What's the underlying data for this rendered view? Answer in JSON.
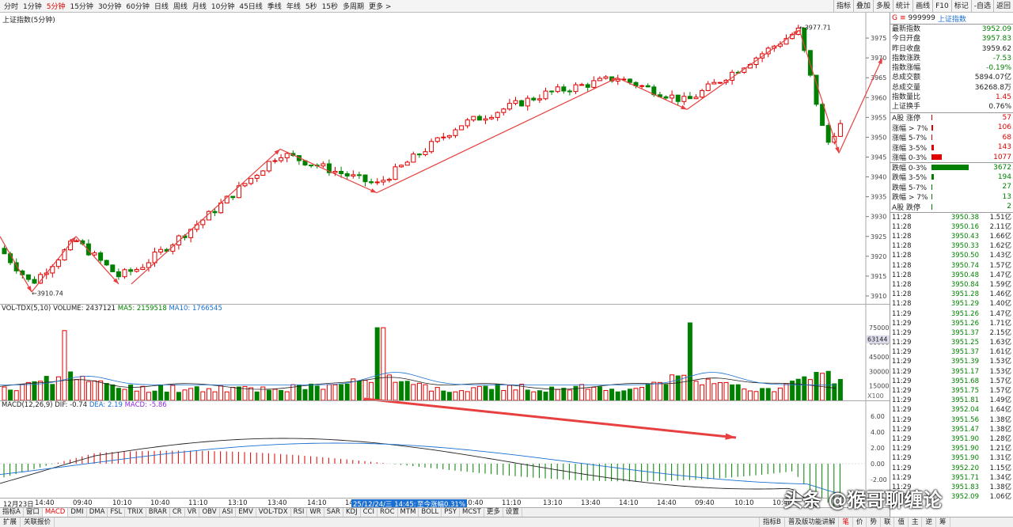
{
  "toolbar": {
    "periods": [
      "分时",
      "1分钟",
      "5分钟",
      "15分钟",
      "30分钟",
      "60分钟",
      "日线",
      "周线",
      "月线",
      "10分钟",
      "45日线",
      "季线",
      "年线",
      "5秒",
      "15秒",
      "多周期",
      "更多 >"
    ],
    "active": "5分钟",
    "right": [
      "指标",
      "叠加",
      "多股",
      "统计",
      "画线",
      "F10",
      "标记",
      "-自选",
      "返回"
    ]
  },
  "chart": {
    "title": "上证指数(5分钟)",
    "high_label": "3977.71",
    "low_label": "3910.74",
    "yticks": [
      "3975",
      "3970",
      "3965",
      "3960",
      "3955",
      "3950",
      "3945",
      "3940",
      "3935",
      "3930",
      "3925",
      "3920",
      "3915",
      "3910"
    ]
  },
  "vol": {
    "label": "VOL-TDX(5,10)",
    "volume": "VOLUME: 2437121",
    "ma5": "MA5: 2159518",
    "ma10": "MA10: 1766545",
    "yticks": [
      "75000",
      "60000",
      "45000",
      "30000",
      "15000"
    ],
    "current": "63144",
    "unit": "X100"
  },
  "macd": {
    "label": "MACD(12,26,9)",
    "dif": "DIF: -0.74",
    "dea": "DEA: 2.19",
    "macd": "MACD: -5.86",
    "yticks": [
      "6.00",
      "4.00",
      "2.00",
      "0.00",
      "-2.00"
    ]
  },
  "xaxis": {
    "labels": [
      "12月23日",
      "14:40",
      "09:40",
      "10:10",
      "10:40",
      "11:10",
      "13:10",
      "13:40",
      "14:10",
      "14:",
      "10:40",
      "11:10",
      "13:10",
      "13:40",
      "14:10",
      "14:40",
      "09:40",
      "10:10",
      "10:40"
    ],
    "cursor": "25/12/24/三 14:45:76",
    "cursor_pct": "至今涨幅0.31%"
  },
  "indicator_tabs": [
    "指标A",
    "窗口",
    "MACD",
    "DMI",
    "DMA",
    "FSL",
    "TRIX",
    "BRAR",
    "CR",
    "VR",
    "OBV",
    "ASI",
    "EMV",
    "VOL-TDX",
    "RSI",
    "WR",
    "SAR",
    "KDJ",
    "CCI",
    "ROC",
    "MTM",
    "BOLL",
    "PSY",
    "MCST",
    "更多",
    "设置"
  ],
  "active_tab": "MACD",
  "bottom": {
    "left": [
      "扩展",
      "关联报价"
    ],
    "mid": "指标B",
    "right_label": "普及版功能讲解",
    "right_tabs": [
      "笔",
      "价",
      "势",
      "联",
      "值",
      "主",
      "逆",
      "筹"
    ]
  },
  "side": {
    "code": "999999",
    "name": "上证指数",
    "stats": [
      [
        "最新指数",
        "3952.09",
        "g"
      ],
      [
        "今日开盘",
        "3957.83",
        "g"
      ],
      [
        "昨日收盘",
        "3959.62",
        "k"
      ],
      [
        "指数涨跌",
        "-7.53",
        "g"
      ],
      [
        "指数涨幅",
        "-0.19%",
        "g"
      ],
      [
        "总成交额",
        "5894.07亿",
        "k"
      ],
      [
        "总成交量",
        "36268.8万",
        "k"
      ],
      [
        "指数量比",
        "1.45",
        "r"
      ],
      [
        "上证换手",
        "0.76%",
        "k"
      ]
    ],
    "dist": [
      [
        "A股 涨停",
        "57",
        "r",
        2
      ],
      [
        "涨幅 > 7%",
        "106",
        "r",
        3
      ],
      [
        "涨幅 5-7%",
        "68",
        "r",
        2
      ],
      [
        "涨幅 3-5%",
        "143",
        "r",
        5
      ],
      [
        "涨幅 0-3%",
        "1077",
        "r",
        20
      ],
      [
        "跌幅 0-3%",
        "3672",
        "g",
        75
      ],
      [
        "跌幅 3-5%",
        "194",
        "g",
        4
      ],
      [
        "跌幅 5-7%",
        "27",
        "g",
        2
      ],
      [
        "跌幅 > 7%",
        "13",
        "g",
        2
      ],
      [
        "A股 跌停",
        "2",
        "g",
        1
      ]
    ],
    "ticks": [
      [
        "11:28",
        "3950.38",
        "1.51亿"
      ],
      [
        "11:28",
        "3950.16",
        "2.11亿"
      ],
      [
        "11:28",
        "3950.43",
        "1.66亿"
      ],
      [
        "11:28",
        "3950.33",
        "1.62亿"
      ],
      [
        "11:28",
        "3950.50",
        "1.43亿"
      ],
      [
        "11:28",
        "3950.74",
        "1.57亿"
      ],
      [
        "11:28",
        "3950.48",
        "1.47亿"
      ],
      [
        "11:28",
        "3950.84",
        "1.59亿"
      ],
      [
        "11:28",
        "3951.28",
        "1.46亿"
      ],
      [
        "11:28",
        "3951.29",
        "1.40亿"
      ],
      [
        "11:29",
        "3951.26",
        "1.47亿"
      ],
      [
        "11:29",
        "3951.26",
        "1.71亿"
      ],
      [
        "11:29",
        "3951.37",
        "2.15亿"
      ],
      [
        "11:29",
        "3951.25",
        "1.63亿"
      ],
      [
        "11:29",
        "3951.37",
        "1.61亿"
      ],
      [
        "11:29",
        "3951.39",
        "1.53亿"
      ],
      [
        "11:29",
        "3951.17",
        "1.53亿"
      ],
      [
        "11:29",
        "3951.68",
        "1.57亿"
      ],
      [
        "11:29",
        "3951.75",
        "1.57亿"
      ],
      [
        "11:29",
        "3951.81",
        "1.49亿"
      ],
      [
        "11:29",
        "3952.04",
        "1.64亿"
      ],
      [
        "11:29",
        "3951.56",
        "1.38亿"
      ],
      [
        "11:29",
        "3951.47",
        "1.38亿"
      ],
      [
        "11:29",
        "3951.90",
        "1.28亿"
      ],
      [
        "11:29",
        "3951.90",
        "1.21亿"
      ],
      [
        "11:29",
        "3951.90",
        "1.31亿"
      ],
      [
        "11:29",
        "3952.20",
        "1.15亿"
      ],
      [
        "11:29",
        "3951.71",
        "1.34亿"
      ],
      [
        "11:29",
        "3951.83",
        "1.38亿"
      ],
      [
        "11:30",
        "3952.09",
        "1.06亿"
      ]
    ]
  },
  "watermark": "头条 @猴哥聊缠论",
  "colors": {
    "up": "#e00000",
    "down": "#008000",
    "arrow": "#e84040"
  }
}
